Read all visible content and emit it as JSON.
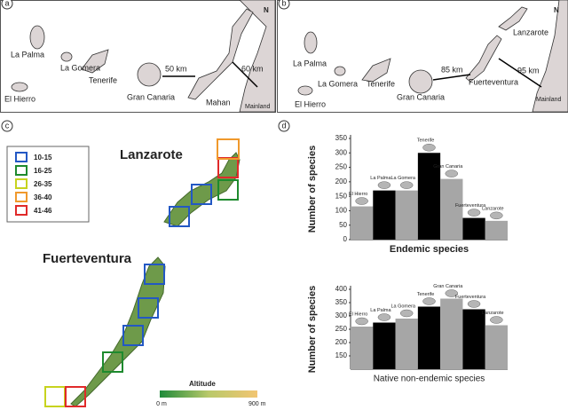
{
  "panels": {
    "a": {
      "label": "a",
      "north": "N",
      "places": [
        "La Palma",
        "La Gomera",
        "Tenerife",
        "El Hierro",
        "Gran Canaria",
        "Mahan",
        "Mainland"
      ],
      "distances": [
        "50 km",
        "60 km"
      ]
    },
    "b": {
      "label": "b",
      "north": "N",
      "places": [
        "La Palma",
        "La Gomera",
        "Tenerife",
        "El Hierro",
        "Gran Canaria",
        "Fuerteventura",
        "Lanzarote",
        "Mainland"
      ],
      "distances": [
        "85 km",
        "95 km"
      ]
    },
    "c": {
      "label": "c",
      "islands": [
        "Lanzarote",
        "Fuerteventura"
      ],
      "legend": [
        "10-15",
        "16-25",
        "26-35",
        "36-40",
        "41-46"
      ],
      "altitude": {
        "title": "Altitude",
        "min": "0 m",
        "max": "900 m"
      }
    },
    "d": {
      "label": "d"
    }
  },
  "chart_data": [
    {
      "type": "bar",
      "y_label": "Number of species",
      "x_label": "Endemic species",
      "categories": [
        "El Hierro",
        "La Palma",
        "La Gomera",
        "Tenerife",
        "Gran Canaria",
        "Fuerteventura",
        "Lanzarote"
      ],
      "values": [
        115,
        170,
        170,
        300,
        210,
        75,
        65
      ],
      "colors": [
        "#a6a6a6",
        "#000000",
        "#a6a6a6",
        "#000000",
        "#a6a6a6",
        "#000000",
        "#a6a6a6"
      ],
      "ylim": [
        0,
        350
      ],
      "yticks": [
        0,
        50,
        100,
        150,
        200,
        250,
        300,
        350
      ]
    },
    {
      "type": "bar",
      "y_label": "Number of species",
      "x_label": "Native non-endemic species",
      "categories": [
        "El Hierro",
        "La Palma",
        "La Gomera",
        "Tenerife",
        "Gran Canaria",
        "Fuerteventura",
        "Lanzarote"
      ],
      "values": [
        260,
        275,
        290,
        335,
        365,
        325,
        265
      ],
      "colors": [
        "#a6a6a6",
        "#000000",
        "#a6a6a6",
        "#000000",
        "#a6a6a6",
        "#000000",
        "#a6a6a6"
      ],
      "ylim": [
        100,
        400
      ],
      "yticks": [
        150,
        200,
        250,
        300,
        350,
        400
      ]
    }
  ]
}
